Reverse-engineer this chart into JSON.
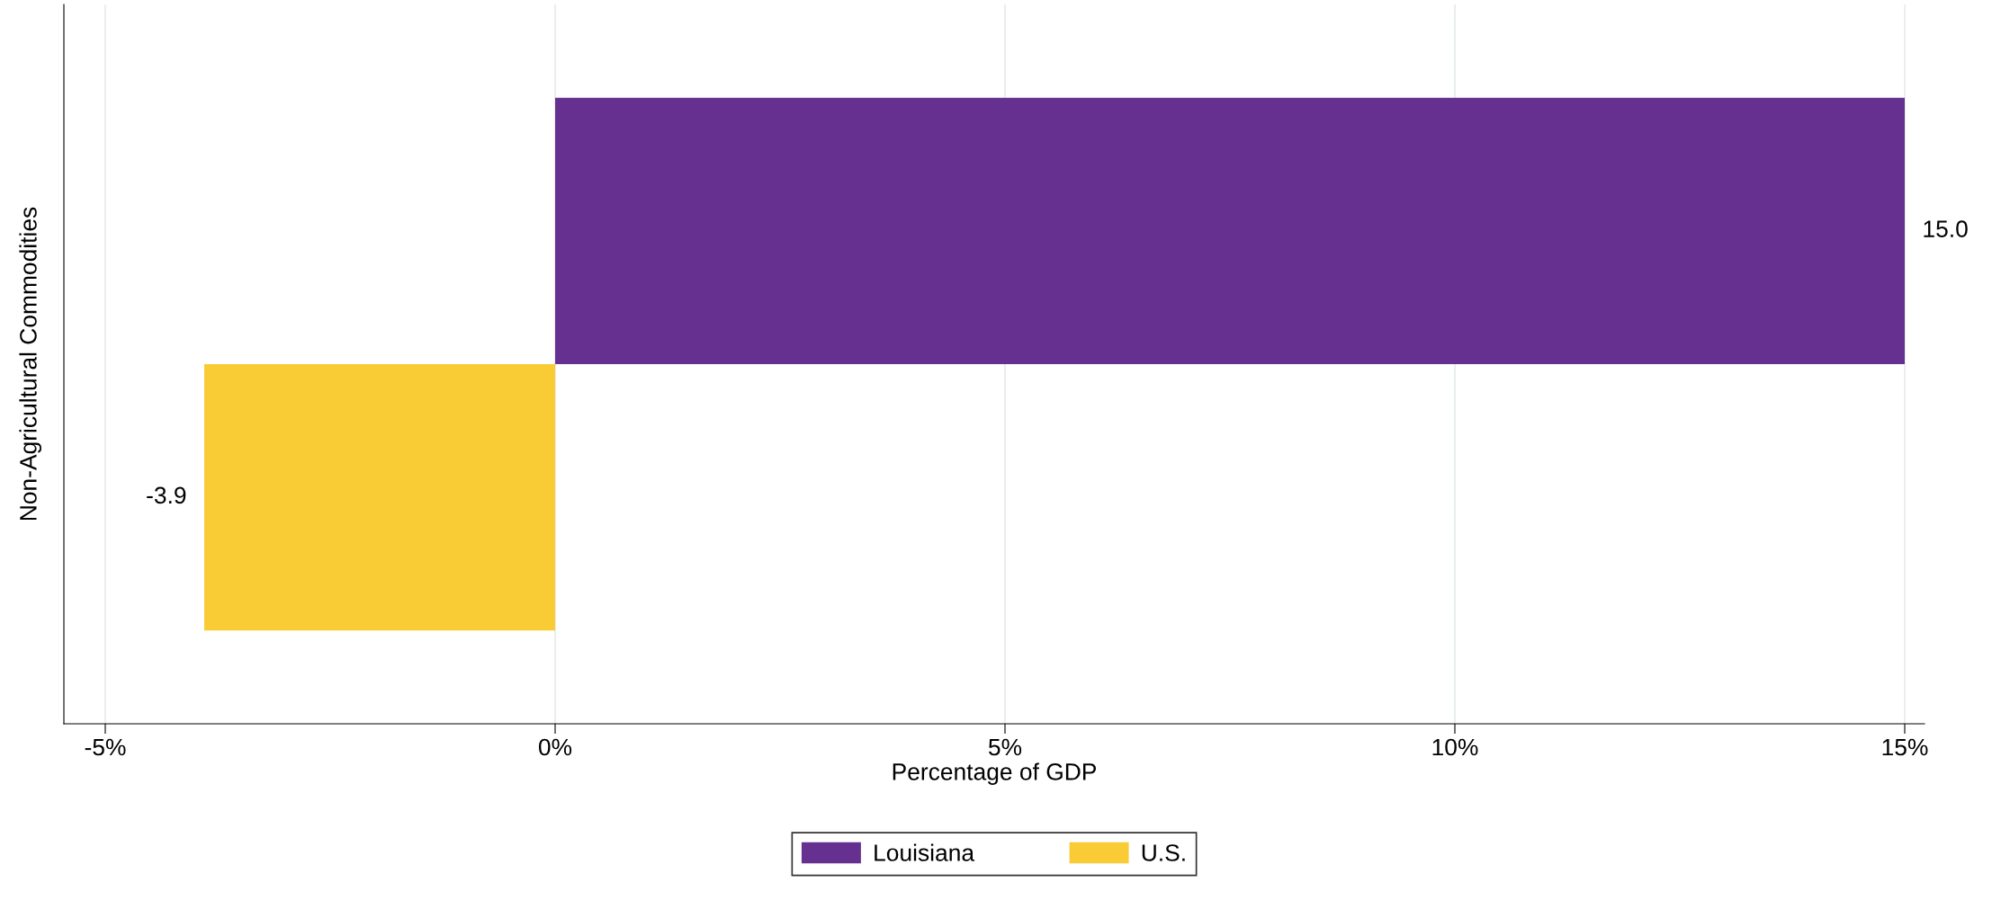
{
  "chart_data": {
    "type": "bar",
    "orientation": "horizontal",
    "categories": [
      "Non-Agricultural Commodities"
    ],
    "xlabel": "Percentage of GDP",
    "series": [
      {
        "name": "Louisiana",
        "color": "#663090",
        "values": [
          15.0
        ],
        "value_labels": [
          "15.0"
        ]
      },
      {
        "name": "U.S.",
        "color": "#f9cb35",
        "values": [
          -3.9
        ],
        "value_labels": [
          "-3.9"
        ]
      }
    ],
    "xlim": [
      -5.46,
      15.22
    ],
    "xticks": [
      {
        "value": -5,
        "label": "-5%"
      },
      {
        "value": 0,
        "label": "0%"
      },
      {
        "value": 5,
        "label": "5%"
      },
      {
        "value": 10,
        "label": "10%"
      },
      {
        "value": 15,
        "label": "15%"
      }
    ],
    "grid": "x",
    "legend": "bottom"
  }
}
